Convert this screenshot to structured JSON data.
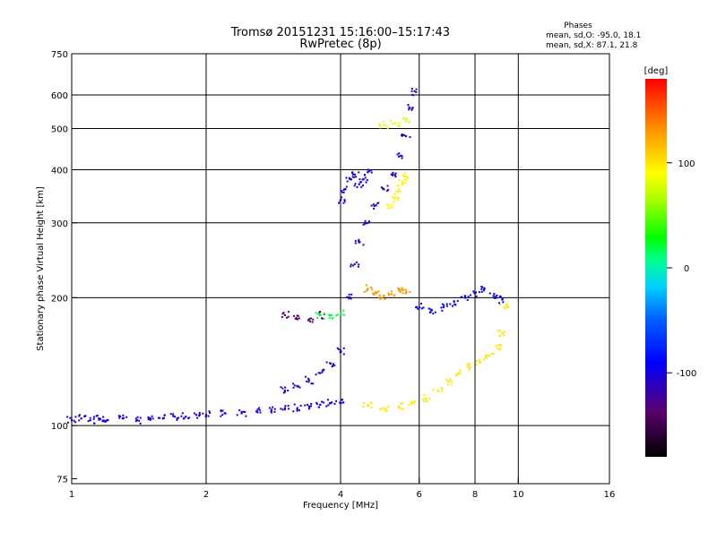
{
  "chart_data": {
    "type": "scatter",
    "title": "Tromsø 20151231 15:16:00–15:17:43",
    "subtitle": "RwPretec (8p)",
    "stats": {
      "heading": "Phases",
      "line1": "mean, sd,O: -95.0, 18.1",
      "line2": "mean, sd,X:  87.1, 21.8"
    },
    "xlabel": "Frequency [MHz]",
    "ylabel": "Stationary phase Virtual Height [km]",
    "xscale": "log",
    "yscale": "log",
    "xlim": [
      1,
      16
    ],
    "ylim": [
      73,
      750
    ],
    "xticks": [
      1,
      2,
      4,
      6,
      8,
      10,
      16
    ],
    "xtick_labels": [
      "1",
      "2",
      "4",
      "6",
      "8",
      "10",
      "16"
    ],
    "xgrid": [
      2,
      4,
      6,
      8,
      10
    ],
    "yticks": [
      75,
      100,
      200,
      300,
      400,
      500,
      600,
      750
    ],
    "ytick_labels": [
      "75",
      "100",
      "200",
      "300",
      "400",
      "500",
      "600",
      "750"
    ],
    "ygrid": [
      100,
      200,
      300,
      400,
      500,
      600
    ],
    "grid": true,
    "colorbar": {
      "label": "[deg]",
      "range": [
        -180,
        180
      ],
      "ticks": [
        100,
        0,
        -100
      ],
      "tick_labels": [
        "100",
        "0",
        "-100"
      ]
    },
    "series": [
      {
        "trace": "low-band",
        "phase": -100,
        "points": [
          [
            1.0,
            103
          ],
          [
            1.05,
            104
          ],
          [
            1.1,
            103
          ],
          [
            1.15,
            104
          ],
          [
            1.2,
            103
          ],
          [
            1.3,
            104
          ],
          [
            1.4,
            103
          ],
          [
            1.5,
            104
          ],
          [
            1.6,
            104
          ],
          [
            1.7,
            105
          ],
          [
            1.8,
            105
          ],
          [
            1.9,
            106
          ],
          [
            2.0,
            106
          ],
          [
            2.2,
            107
          ],
          [
            2.4,
            107
          ],
          [
            2.6,
            108
          ],
          [
            2.8,
            109
          ],
          [
            3.0,
            110
          ],
          [
            3.2,
            110
          ],
          [
            3.4,
            111
          ],
          [
            3.6,
            112
          ],
          [
            3.8,
            113
          ],
          [
            4.0,
            113
          ]
        ]
      },
      {
        "trace": "oblique-ramp",
        "phase": -105,
        "points": [
          [
            3.0,
            121
          ],
          [
            3.2,
            124
          ],
          [
            3.4,
            128
          ],
          [
            3.6,
            133
          ],
          [
            3.8,
            140
          ],
          [
            4.0,
            150
          ]
        ]
      },
      {
        "trace": "upper-curve",
        "phase": -110,
        "points": [
          [
            4.2,
            200
          ],
          [
            4.3,
            240
          ],
          [
            4.4,
            270
          ],
          [
            4.6,
            300
          ],
          [
            4.8,
            330
          ],
          [
            5.0,
            360
          ],
          [
            5.2,
            390
          ],
          [
            5.4,
            430
          ],
          [
            5.6,
            480
          ],
          [
            5.8,
            560
          ],
          [
            5.9,
            610
          ]
        ]
      },
      {
        "trace": "upper-cluster",
        "phase": -100,
        "points": [
          [
            4.0,
            340
          ],
          [
            4.1,
            360
          ],
          [
            4.2,
            380
          ],
          [
            4.3,
            390
          ],
          [
            4.4,
            370
          ],
          [
            4.5,
            380
          ],
          [
            4.6,
            395
          ]
        ]
      },
      {
        "trace": "lower-yellow",
        "phase": 100,
        "points": [
          [
            4.6,
            112
          ],
          [
            5.0,
            110
          ],
          [
            5.4,
            111
          ],
          [
            5.8,
            113
          ],
          [
            6.2,
            116
          ],
          [
            6.6,
            121
          ],
          [
            7.0,
            127
          ],
          [
            7.4,
            133
          ],
          [
            7.8,
            137
          ],
          [
            8.2,
            141
          ],
          [
            8.6,
            146
          ],
          [
            9.0,
            152
          ],
          [
            9.2,
            165
          ],
          [
            9.3,
            190
          ]
        ]
      },
      {
        "trace": "mid-yellow",
        "phase": 95,
        "points": [
          [
            5.2,
            330
          ],
          [
            5.3,
            345
          ],
          [
            5.4,
            360
          ],
          [
            5.5,
            375
          ],
          [
            5.6,
            385
          ]
        ]
      },
      {
        "trace": "mid-band",
        "phase": -95,
        "points": [
          [
            6.0,
            190
          ],
          [
            6.4,
            187
          ],
          [
            6.8,
            190
          ],
          [
            7.2,
            193
          ],
          [
            7.6,
            200
          ],
          [
            8.0,
            205
          ],
          [
            8.4,
            210
          ],
          [
            8.8,
            202
          ],
          [
            9.2,
            198
          ]
        ]
      },
      {
        "trace": "orange-cluster",
        "phase": 130,
        "points": [
          [
            4.6,
            210
          ],
          [
            4.8,
            205
          ],
          [
            5.0,
            202
          ],
          [
            5.2,
            204
          ],
          [
            5.4,
            208
          ],
          [
            5.6,
            205
          ]
        ]
      },
      {
        "trace": "purple-low",
        "phase": -140,
        "points": [
          [
            3.0,
            182
          ],
          [
            3.2,
            178
          ],
          [
            3.4,
            178
          ],
          [
            3.6,
            182
          ]
        ]
      },
      {
        "trace": "green-low",
        "phase": 20,
        "points": [
          [
            3.6,
            182
          ],
          [
            3.8,
            182
          ],
          [
            4.0,
            185
          ]
        ]
      },
      {
        "trace": "top-arc",
        "phase": 80,
        "points": [
          [
            5.0,
            510
          ],
          [
            5.3,
            515
          ],
          [
            5.6,
            520
          ]
        ]
      }
    ]
  }
}
